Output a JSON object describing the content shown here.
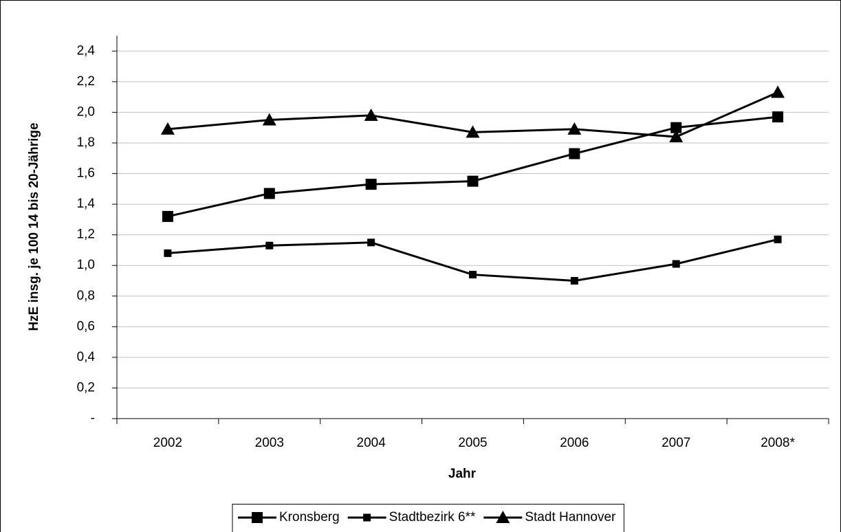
{
  "chart_data": {
    "type": "line",
    "x_label": "Jahr",
    "y_label": "HzE insg. je 100 14 bis 20-Jährige",
    "categories": [
      "2002",
      "2003",
      "2004",
      "2005",
      "2006",
      "2007",
      "2008*"
    ],
    "series": [
      {
        "name": "Kronsberg",
        "color": "#000000",
        "marker": "square-large",
        "values": [
          1.32,
          1.47,
          1.53,
          1.55,
          1.73,
          1.9,
          1.97
        ]
      },
      {
        "name": "Stadtbezirk 6**",
        "color": "#000000",
        "marker": "square-small",
        "values": [
          1.08,
          1.13,
          1.15,
          0.94,
          0.9,
          1.01,
          1.17
        ]
      },
      {
        "name": "Stadt Hannover",
        "color": "#000000",
        "marker": "triangle",
        "values": [
          1.89,
          1.95,
          1.98,
          1.87,
          1.89,
          1.84,
          2.13
        ]
      }
    ],
    "ylim": [
      0,
      2.5
    ],
    "yticks": [
      {
        "value": 0,
        "label": "-"
      },
      {
        "value": 0.2,
        "label": "0,2"
      },
      {
        "value": 0.4,
        "label": "0,4"
      },
      {
        "value": 0.6,
        "label": "0,6"
      },
      {
        "value": 0.8,
        "label": "0,8"
      },
      {
        "value": 1.0,
        "label": "1,0"
      },
      {
        "value": 1.2,
        "label": "1,2"
      },
      {
        "value": 1.4,
        "label": "1,4"
      },
      {
        "value": 1.6,
        "label": "1,6"
      },
      {
        "value": 1.8,
        "label": "1,8"
      },
      {
        "value": 2.0,
        "label": "2,0"
      },
      {
        "value": 2.2,
        "label": "2,2"
      },
      {
        "value": 2.4,
        "label": "2,4"
      }
    ],
    "grid": true,
    "legend": "bottom"
  }
}
